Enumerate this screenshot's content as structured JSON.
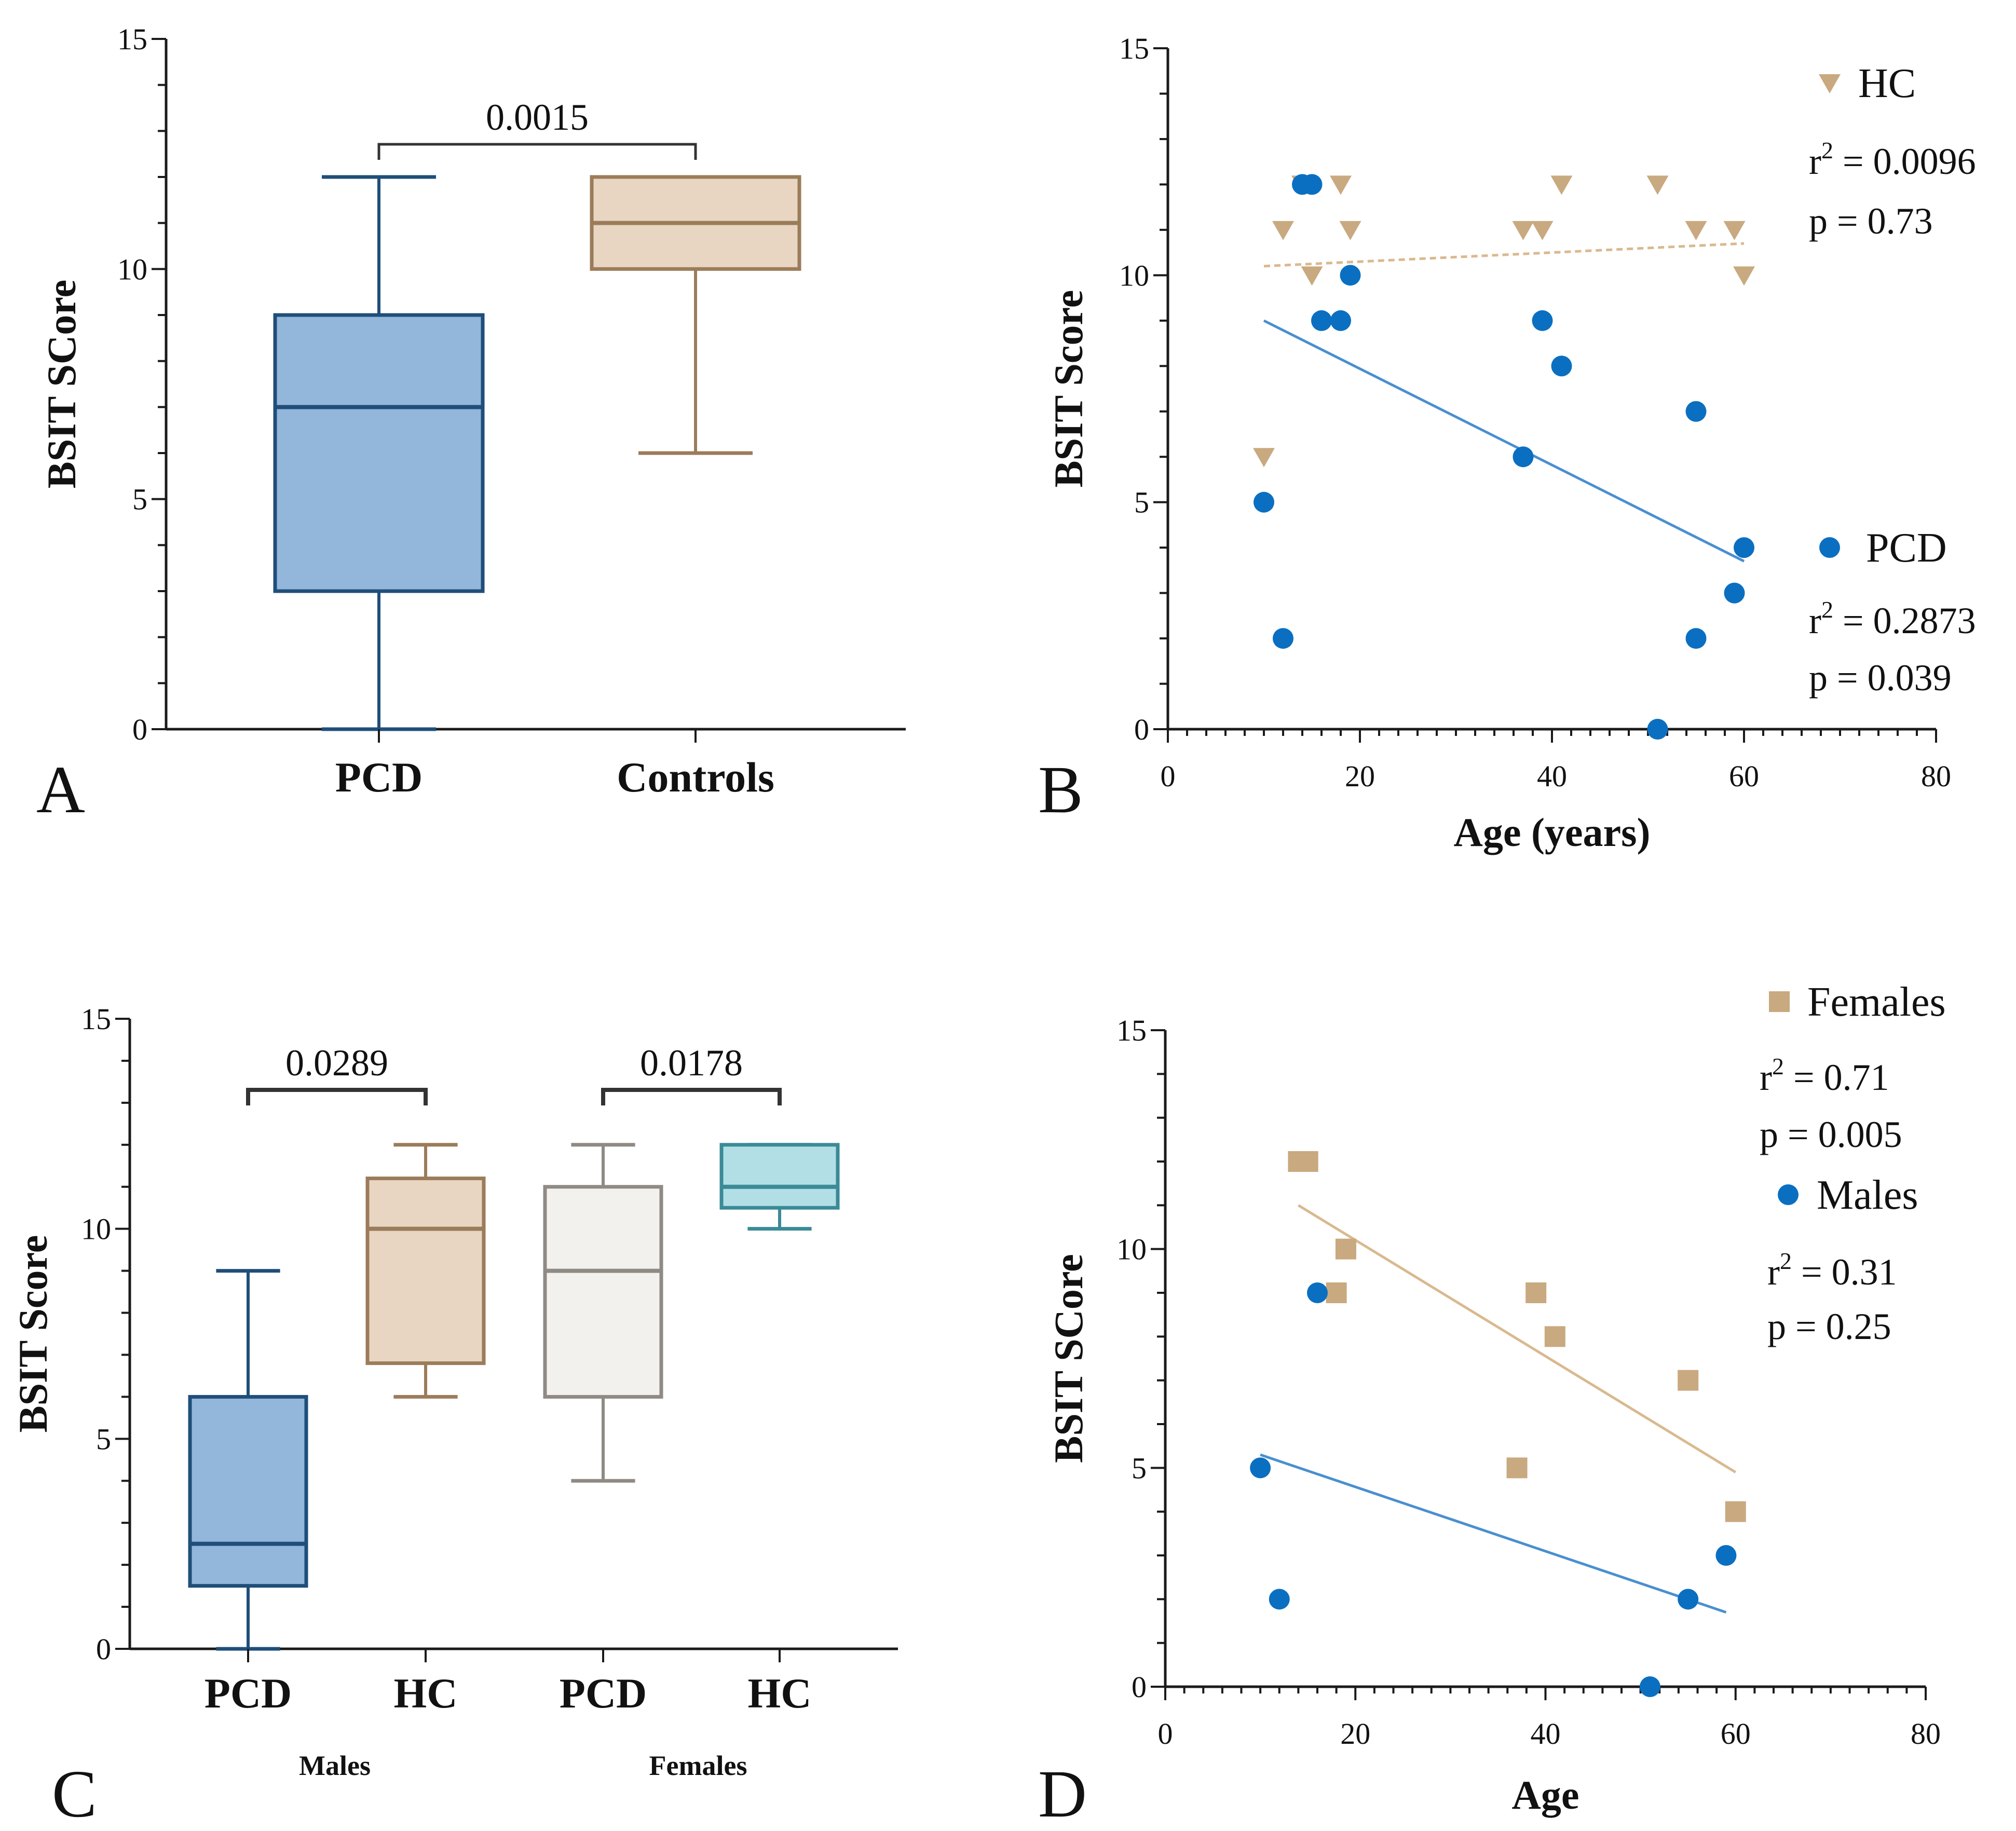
{
  "colors": {
    "pcd_fill": "#93b6db",
    "pcd_stroke": "#1f4e79",
    "hc_fill": "#e8d6c2",
    "hc_stroke": "#9b7c5a",
    "hc_marker": "#c9a97f",
    "pcd_marker": "#0b6fc1",
    "female_pcd_fill": "#f3f1ee",
    "female_pcd_stroke": "#8f8a84",
    "female_hc_fill": "#b2dfe6",
    "female_hc_stroke": "#3b8a97"
  },
  "chart_data": [
    {
      "panel": "A",
      "type": "box",
      "ylabel": "BSIT SCore",
      "ylim": [
        0,
        15
      ],
      "yticks": [
        "0",
        "5",
        "10",
        "15"
      ],
      "categories": [
        "PCD",
        "Controls"
      ],
      "boxes": [
        {
          "name": "PCD",
          "min": 0,
          "q1": 3,
          "median": 7,
          "q3": 9,
          "max": 12
        },
        {
          "name": "Controls",
          "min": 6,
          "q1": 10,
          "median": 11,
          "q3": 12,
          "max": 12
        }
      ],
      "comparisons": [
        {
          "between": [
            "PCD",
            "Controls"
          ],
          "p": "0.0015"
        }
      ]
    },
    {
      "panel": "B",
      "type": "scatter",
      "xlabel": "Age (years)",
      "ylabel": "BSIT Score",
      "xlim": [
        0,
        80
      ],
      "ylim": [
        0,
        15
      ],
      "xticks": [
        "0",
        "20",
        "40",
        "60",
        "80"
      ],
      "yticks": [
        "0",
        "5",
        "10",
        "15"
      ],
      "series": [
        {
          "name": "HC",
          "marker": "triangle-down",
          "r2_label": "r",
          "r2_value": " = 0.0096",
          "p_label": "p = 0.73",
          "fit": {
            "x": [
              10,
              60
            ],
            "y": [
              10.2,
              10.7
            ],
            "style": "dashed"
          },
          "points": [
            [
              10,
              6
            ],
            [
              12,
              11
            ],
            [
              14,
              12
            ],
            [
              15,
              10
            ],
            [
              18,
              12
            ],
            [
              19,
              11
            ],
            [
              37,
              11
            ],
            [
              39,
              11
            ],
            [
              41,
              12
            ],
            [
              51,
              12
            ],
            [
              55,
              11
            ],
            [
              59,
              11
            ],
            [
              60,
              10
            ]
          ]
        },
        {
          "name": "PCD",
          "marker": "circle",
          "r2_label": "r",
          "r2_value": " = 0.2873",
          "p_label": "p = 0.039",
          "fit": {
            "x": [
              10,
              60
            ],
            "y": [
              9.0,
              3.7
            ],
            "style": "solid"
          },
          "points": [
            [
              10,
              5
            ],
            [
              12,
              2
            ],
            [
              14,
              12
            ],
            [
              15,
              12
            ],
            [
              16,
              9
            ],
            [
              18,
              9
            ],
            [
              19,
              10
            ],
            [
              37,
              6
            ],
            [
              39,
              9
            ],
            [
              41,
              8
            ],
            [
              51,
              0
            ],
            [
              55,
              7
            ],
            [
              55,
              2
            ],
            [
              59,
              3
            ],
            [
              60,
              4
            ]
          ]
        }
      ]
    },
    {
      "panel": "C",
      "type": "box",
      "ylabel": "BSIT Score",
      "ylim": [
        0,
        15
      ],
      "yticks": [
        "0",
        "5",
        "10",
        "15"
      ],
      "categories": [
        "PCD",
        "HC",
        "PCD",
        "HC"
      ],
      "groups": [
        "Males",
        "Females"
      ],
      "boxes": [
        {
          "name": "Males PCD",
          "min": 0,
          "q1": 1.5,
          "median": 2.5,
          "q3": 6,
          "max": 9
        },
        {
          "name": "Males HC",
          "min": 6,
          "q1": 6.8,
          "median": 10,
          "q3": 11.2,
          "max": 12
        },
        {
          "name": "Females PCD",
          "min": 4,
          "q1": 6,
          "median": 9,
          "q3": 11,
          "max": 12
        },
        {
          "name": "Females HC",
          "min": 10,
          "q1": 10.5,
          "median": 11,
          "q3": 12,
          "max": 12
        }
      ],
      "comparisons": [
        {
          "between": [
            "Males PCD",
            "Males HC"
          ],
          "p": "0.0289"
        },
        {
          "between": [
            "Females PCD",
            "Females HC"
          ],
          "p": "0.0178"
        }
      ]
    },
    {
      "panel": "D",
      "type": "scatter",
      "xlabel": "Age",
      "ylabel": "BSIT SCore",
      "xlim": [
        0,
        80
      ],
      "ylim": [
        0,
        15
      ],
      "xticks": [
        "0",
        "20",
        "40",
        "60",
        "80"
      ],
      "yticks": [
        "0",
        "5",
        "10",
        "15"
      ],
      "series": [
        {
          "name": "Females",
          "marker": "square",
          "r2_label": "r",
          "r2_value": " = 0.71",
          "p_label": "p = 0.005",
          "fit": {
            "x": [
              14,
              60
            ],
            "y": [
              11.0,
              4.9
            ],
            "style": "solid"
          },
          "points": [
            [
              14,
              12
            ],
            [
              15,
              12
            ],
            [
              18,
              9
            ],
            [
              19,
              10
            ],
            [
              37,
              5
            ],
            [
              39,
              9
            ],
            [
              41,
              8
            ],
            [
              55,
              7
            ],
            [
              60,
              4
            ]
          ]
        },
        {
          "name": "Males",
          "marker": "circle",
          "r2_label": "r",
          "r2_value": " = 0.31",
          "p_label": "p = 0.25",
          "fit": {
            "x": [
              10,
              59
            ],
            "y": [
              5.3,
              1.7
            ],
            "style": "solid"
          },
          "points": [
            [
              10,
              5
            ],
            [
              12,
              2
            ],
            [
              16,
              9
            ],
            [
              51,
              0
            ],
            [
              55,
              2
            ],
            [
              59,
              3
            ]
          ]
        }
      ]
    }
  ]
}
